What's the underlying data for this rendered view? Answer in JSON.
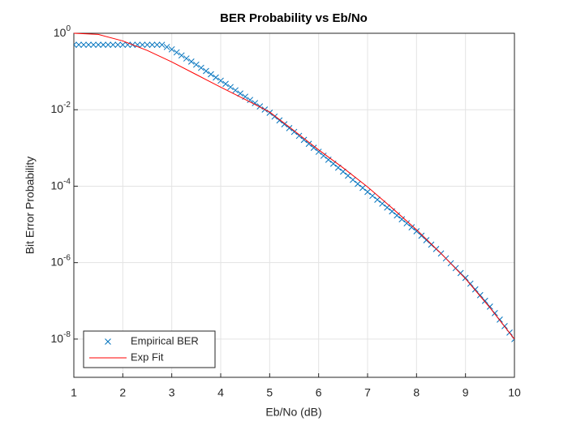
{
  "chart_data": {
    "type": "line",
    "title": "BER Probability vs Eb/No",
    "x_label": "Eb/No (dB)",
    "y_label": "Bit Error Probability",
    "log_y": true,
    "grid": true,
    "legend": "lower left",
    "xlim": [
      1,
      10
    ],
    "xticks": [
      1,
      2,
      3,
      4,
      5,
      6,
      7,
      8,
      9,
      10
    ],
    "ylim": [
      1e-09,
      1
    ],
    "yticks": [
      {
        "value": 1,
        "label": "10^0"
      },
      {
        "value": 0.01,
        "label": "10^-2"
      },
      {
        "value": 0.0001,
        "label": "10^-4"
      },
      {
        "value": 1e-06,
        "label": "10^-6"
      },
      {
        "value": 1e-08,
        "label": "10^-8"
      }
    ],
    "series": [
      {
        "name": "Empirical BER",
        "style": "marker",
        "color": "#0072bd",
        "x": [
          1.0,
          1.1,
          1.2,
          1.3,
          1.4,
          1.5,
          1.6,
          1.7,
          1.8,
          1.9,
          2.0,
          2.1,
          2.2,
          2.3,
          2.4,
          2.5,
          2.6,
          2.7,
          2.8,
          2.9,
          3.0,
          3.1,
          3.2,
          3.3,
          3.4,
          3.5,
          3.6,
          3.7,
          3.8,
          3.9,
          4.0,
          4.1,
          4.2,
          4.3,
          4.4,
          4.5,
          4.6,
          4.7,
          4.8,
          4.9,
          5.0,
          5.1,
          5.2,
          5.3,
          5.4,
          5.5,
          5.6,
          5.7,
          5.8,
          5.9,
          6.0,
          6.1,
          6.2,
          6.3,
          6.4,
          6.5,
          6.6,
          6.7,
          6.8,
          6.9,
          7.0,
          7.1,
          7.2,
          7.3,
          7.4,
          7.5,
          7.6,
          7.7,
          7.8,
          7.9,
          8.0,
          8.1,
          8.2,
          8.3,
          8.4,
          8.5,
          8.6,
          8.7,
          8.8,
          8.9,
          9.0,
          9.1,
          9.2,
          9.3,
          9.4,
          9.5,
          9.6,
          9.7,
          9.8,
          9.9,
          10.0
        ],
        "values": [
          0.5,
          0.5,
          0.5,
          0.5,
          0.5,
          0.5,
          0.5,
          0.5,
          0.5,
          0.5,
          0.5,
          0.5,
          0.5,
          0.5,
          0.5,
          0.5,
          0.5,
          0.5,
          0.5,
          0.437,
          0.38,
          0.316,
          0.263,
          0.219,
          0.182,
          0.151,
          0.125,
          0.103,
          0.0847,
          0.0698,
          0.0575,
          0.0474,
          0.0391,
          0.0322,
          0.0265,
          0.0219,
          0.018,
          0.0149,
          0.0122,
          0.0101,
          0.00832,
          0.00661,
          0.00525,
          0.00417,
          0.00331,
          0.00263,
          0.00207,
          0.00163,
          0.00128,
          0.00101,
          0.000794,
          0.000625,
          0.000492,
          0.000387,
          0.000305,
          0.00024,
          0.000188,
          0.000147,
          0.000115,
          9.04e-05,
          7.08e-05,
          5.6e-05,
          4.43e-05,
          3.5e-05,
          2.77e-05,
          2.19e-05,
          1.72e-05,
          1.36e-05,
          1.07e-05,
          8.39e-06,
          6.61e-06,
          5.06e-06,
          3.87e-06,
          2.96e-06,
          2.27e-06,
          1.74e-06,
          1.29e-06,
          9.64e-07,
          7.18e-07,
          5.35e-07,
          3.98e-07,
          2.82e-07,
          2e-07,
          1.41e-07,
          1e-07,
          7.08e-08,
          4.79e-08,
          3.24e-08,
          2.19e-08,
          1.48e-08,
          1e-08
        ]
      },
      {
        "name": "Exp Fit",
        "style": "line",
        "color": "#ff0000",
        "x": [
          1.0,
          1.5,
          2.0,
          2.5,
          3.0,
          3.5,
          4.0,
          4.5,
          5.0,
          5.5,
          6.0,
          6.5,
          7.0,
          7.5,
          8.0,
          8.5,
          9.0,
          9.5,
          10.0
        ],
        "values": [
          1,
          0.933,
          0.631,
          0.355,
          0.178,
          0.0832,
          0.0389,
          0.0186,
          0.00871,
          0.00282,
          0.000891,
          0.000302,
          9.55e-05,
          2.69e-05,
          7.24e-06,
          1.74e-06,
          3.8e-07,
          6.61e-08,
          1e-08
        ]
      }
    ]
  }
}
